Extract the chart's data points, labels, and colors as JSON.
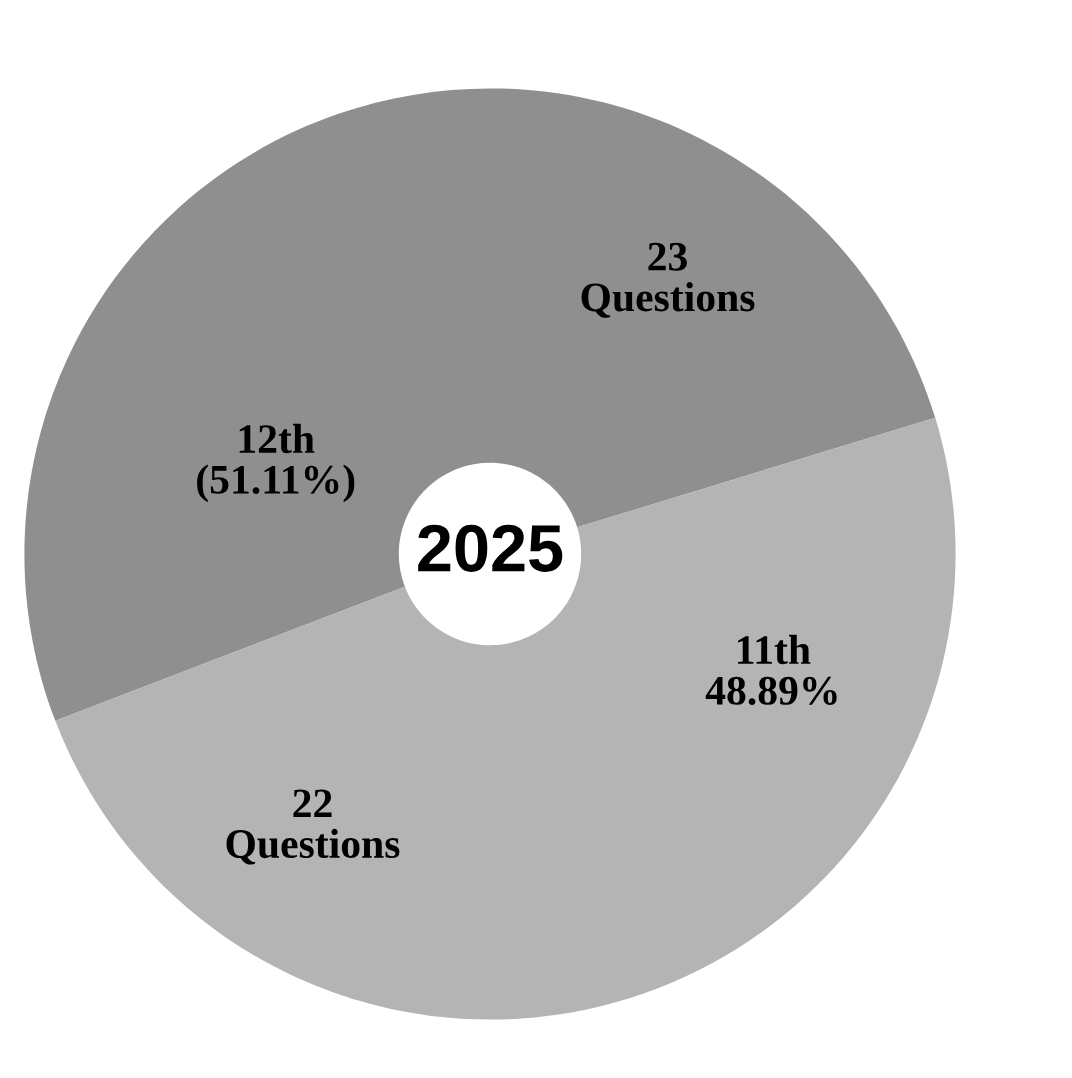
{
  "chart_data": {
    "type": "donut",
    "title": "2025",
    "categories": [
      "12th\n(51.11%)",
      "11th\n48.89%"
    ],
    "values": [
      23,
      22
    ],
    "value_labels": [
      "23\nQuestions",
      "22\nQuestions"
    ],
    "colors": [
      "#8f8f8f",
      "#b4b4b4"
    ],
    "legend": false
  }
}
